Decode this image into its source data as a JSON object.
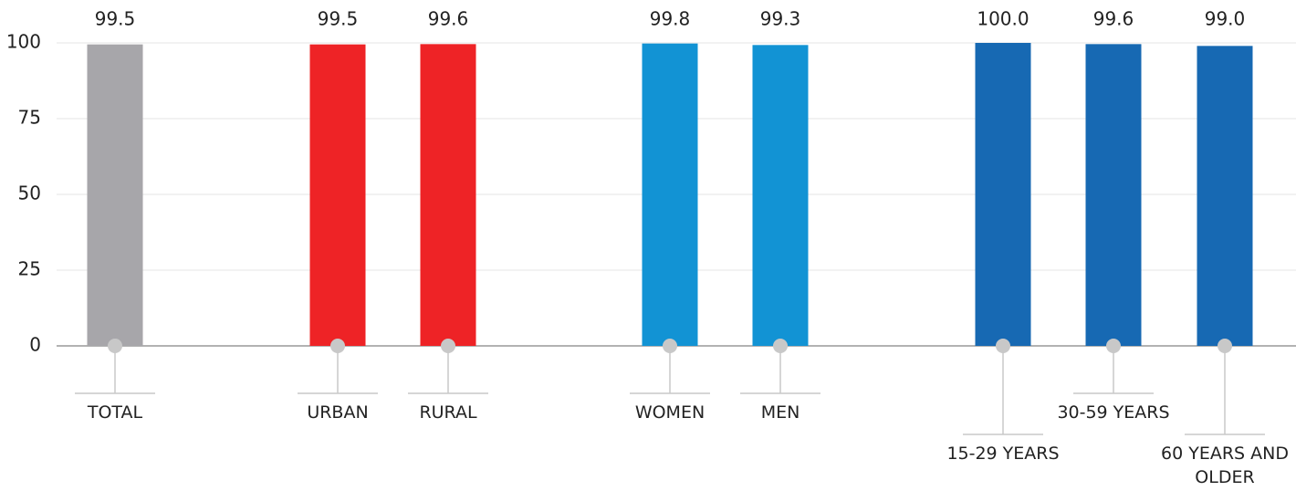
{
  "chart_data": {
    "type": "bar",
    "categories": [
      "TOTAL",
      "URBAN",
      "RURAL",
      "WOMEN",
      "MEN",
      "15-29 YEARS",
      "30-59 YEARS",
      "60 YEARS AND OLDER"
    ],
    "values": [
      99.5,
      99.5,
      99.6,
      99.8,
      99.3,
      100,
      99.6,
      99
    ],
    "value_labels": [
      "99.5",
      "99.5",
      "99.6",
      "99.8",
      "99.3",
      "100.0",
      "99.6",
      "99.0"
    ],
    "colors": [
      "#a7a6aa",
      "#ee2326",
      "#ee2326",
      "#1293d4",
      "#1293d4",
      "#1769b3",
      "#1769b3",
      "#1769b3"
    ],
    "ylim": [
      0,
      100
    ],
    "yticks": [
      0,
      25,
      50,
      75,
      100
    ],
    "grid": true
  }
}
